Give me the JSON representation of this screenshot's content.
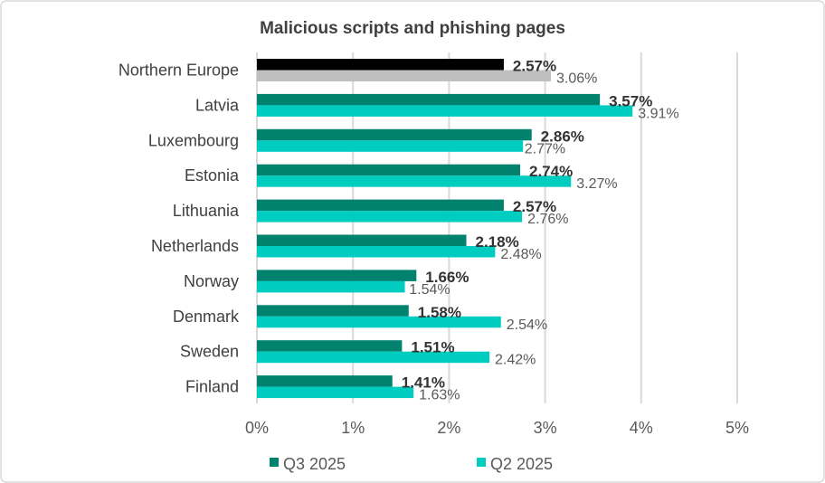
{
  "chart_data": {
    "type": "bar",
    "orientation": "horizontal",
    "title": "Malicious scripts and phishing pages",
    "categories": [
      "Northern Europe",
      "Latvia",
      "Luxembourg",
      "Estonia",
      "Lithuania",
      "Netherlands",
      "Norway",
      "Denmark",
      "Sweden",
      "Finland"
    ],
    "series": [
      {
        "name": "Q3 2025",
        "values": [
          2.57,
          3.57,
          2.86,
          2.74,
          2.57,
          2.18,
          1.66,
          1.58,
          1.51,
          1.41
        ],
        "color": "#00826e",
        "highlight_color": "#000000"
      },
      {
        "name": "Q2 2025",
        "values": [
          3.06,
          3.91,
          2.77,
          3.27,
          2.76,
          2.48,
          1.54,
          2.54,
          2.42,
          1.63
        ],
        "color": "#00ccc0",
        "highlight_color": "#bfbfbf"
      }
    ],
    "highlighted_category": "Northern Europe",
    "value_suffix": "%",
    "xlabel": "",
    "ylabel": "",
    "xlim": [
      0,
      5
    ],
    "xticks": [
      "0%",
      "1%",
      "2%",
      "3%",
      "4%",
      "5%"
    ],
    "grid": true,
    "legend_position": "bottom"
  }
}
